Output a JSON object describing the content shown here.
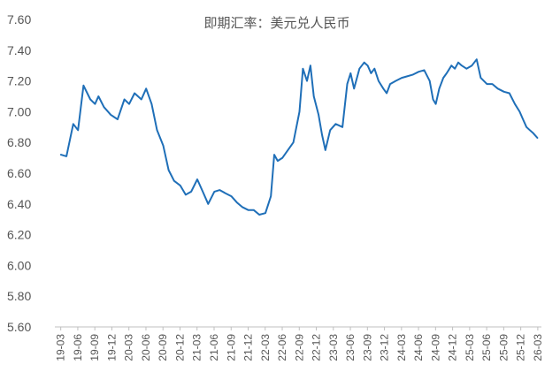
{
  "chart_data": {
    "type": "line",
    "title": "即期汇率：美元兑人民币",
    "xlabel": "",
    "ylabel": "",
    "ylim": [
      5.6,
      7.6
    ],
    "y_ticks": [
      "5.60",
      "5.80",
      "6.00",
      "6.20",
      "6.40",
      "6.60",
      "6.80",
      "7.00",
      "7.20",
      "7.40",
      "7.60"
    ],
    "x_ticks": [
      "19-03",
      "19-06",
      "19-09",
      "19-12",
      "20-03",
      "20-06",
      "20-09",
      "20-12",
      "21-03",
      "21-06",
      "21-09",
      "21-12",
      "22-03",
      "22-06",
      "22-09",
      "22-12",
      "23-03",
      "23-06",
      "23-09",
      "23-12",
      "24-03",
      "24-06",
      "24-09",
      "24-12",
      "25-03",
      "25-06",
      "25-09",
      "25-12",
      "26-03"
    ],
    "grid": false,
    "legend": "none",
    "colors": {
      "line": "#1f6fb8",
      "axis": "#bfbfbf",
      "text": "#555555"
    },
    "series": [
      {
        "x": [
          2019.17,
          2019.25,
          2019.35,
          2019.42,
          2019.5,
          2019.6,
          2019.67,
          2019.72,
          2019.8,
          2019.9,
          2020.0,
          2020.1,
          2020.17,
          2020.25,
          2020.35,
          2020.42,
          2020.5,
          2020.58,
          2020.67,
          2020.75,
          2020.83,
          2020.92,
          2021.0,
          2021.08,
          2021.17,
          2021.25,
          2021.33,
          2021.42,
          2021.5,
          2021.58,
          2021.67,
          2021.75,
          2021.83,
          2021.92,
          2022.0,
          2022.08,
          2022.17,
          2022.25,
          2022.3,
          2022.35,
          2022.42,
          2022.5,
          2022.58,
          2022.67,
          2022.72,
          2022.78,
          2022.83,
          2022.88,
          2022.95,
          2023.0,
          2023.05,
          2023.12,
          2023.2,
          2023.3,
          2023.37,
          2023.42,
          2023.47,
          2023.55,
          2023.62,
          2023.67,
          2023.72,
          2023.77,
          2023.83,
          2023.9,
          2023.95,
          2024.0,
          2024.08,
          2024.17,
          2024.25,
          2024.33,
          2024.42,
          2024.5,
          2024.58,
          2024.63,
          2024.67,
          2024.72,
          2024.78,
          2024.83,
          2024.9,
          2024.95,
          2025.0,
          2025.05,
          2025.12,
          2025.2,
          2025.27,
          2025.33,
          2025.42,
          2025.5,
          2025.58,
          2025.67,
          2025.75,
          2025.83,
          2025.9,
          2025.95,
          2026.0,
          2026.05,
          2026.1,
          2026.16
        ],
        "values": [
          6.72,
          6.71,
          6.92,
          6.88,
          7.17,
          7.08,
          7.05,
          7.1,
          7.03,
          6.98,
          6.95,
          7.08,
          7.05,
          7.12,
          7.08,
          7.15,
          7.05,
          6.88,
          6.78,
          6.62,
          6.55,
          6.52,
          6.46,
          6.48,
          6.56,
          6.48,
          6.4,
          6.48,
          6.49,
          6.47,
          6.45,
          6.41,
          6.38,
          6.36,
          6.36,
          6.33,
          6.34,
          6.45,
          6.72,
          6.68,
          6.7,
          6.75,
          6.8,
          7.0,
          7.28,
          7.2,
          7.3,
          7.1,
          6.98,
          6.85,
          6.75,
          6.88,
          6.92,
          6.9,
          7.18,
          7.25,
          7.15,
          7.28,
          7.32,
          7.3,
          7.25,
          7.28,
          7.2,
          7.15,
          7.12,
          7.18,
          7.2,
          7.22,
          7.23,
          7.24,
          7.26,
          7.27,
          7.2,
          7.08,
          7.05,
          7.15,
          7.22,
          7.25,
          7.3,
          7.28,
          7.32,
          7.3,
          7.28,
          7.3,
          7.34,
          7.22,
          7.18,
          7.18,
          7.15,
          7.13,
          7.12,
          7.05,
          7.0,
          6.95,
          6.9,
          6.88,
          6.86,
          6.83
        ]
      }
    ]
  }
}
